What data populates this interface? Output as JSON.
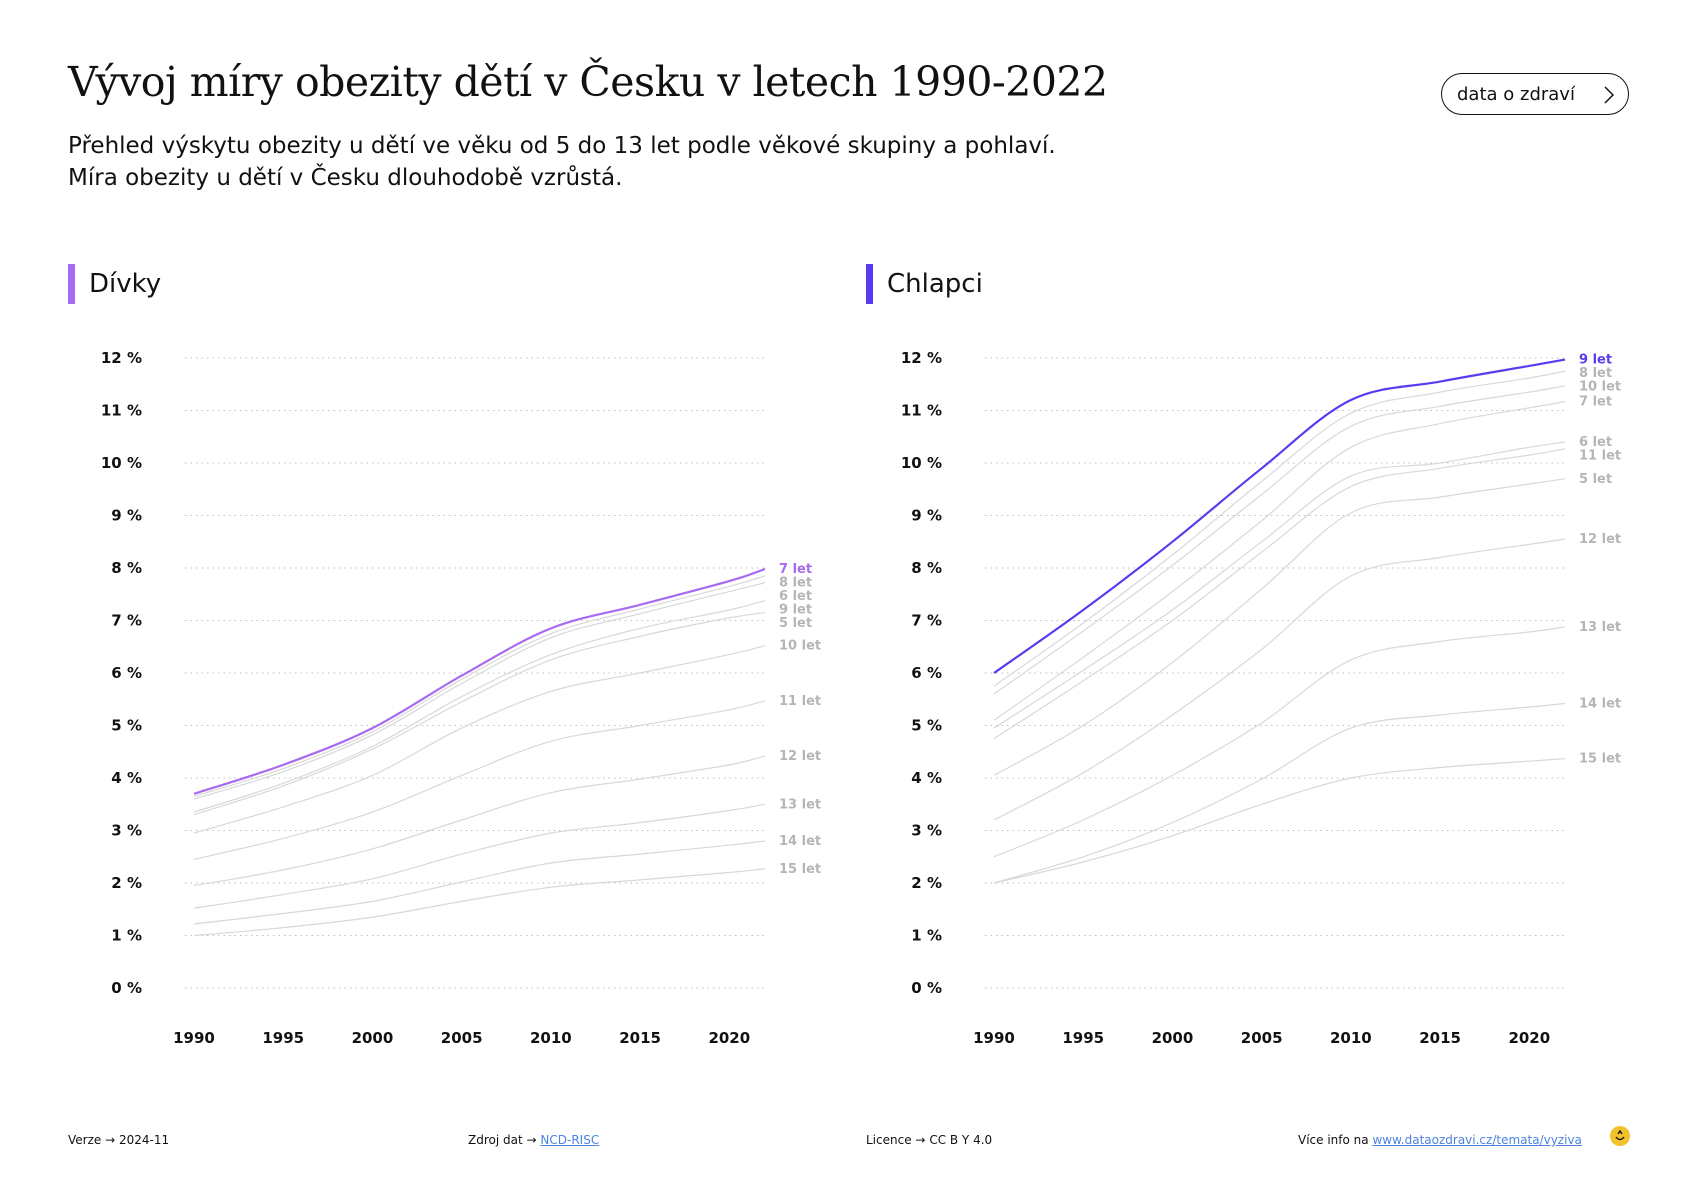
{
  "header": {
    "title": "Vývoj míry obezity dětí v Česku v letech 1990-2022",
    "subtitle_line1": "Přehled výskytu obezity u dětí ve věku od 5 do 13 let podle věkové skupiny a pohlaví.",
    "subtitle_line2": "Míra obezity u dětí v Česku dlouhodobě vzrůstá.",
    "brand_button": "data o zdraví"
  },
  "panels": {
    "left": {
      "label": "Dívky",
      "color": "#a76af0"
    },
    "right": {
      "label": "Chlapci",
      "color": "#5a3cf0"
    }
  },
  "footer": {
    "version_label": "Verze",
    "version_value": "2024-11",
    "source_label": "Zdroj dat",
    "source_link": "NCD-RISC",
    "license_label": "Licence",
    "license_value": "CC B Y 4.0",
    "info_label": "Více info na",
    "info_link": "www.dataozdravi.cz/temata/vyziva",
    "arrow": "→"
  },
  "chart_data": [
    {
      "type": "line",
      "panel": "Dívky",
      "x": [
        1990,
        1995,
        2000,
        2005,
        2010,
        2015,
        2020,
        2022
      ],
      "xticks": [
        1990,
        1995,
        2000,
        2005,
        2010,
        2015,
        2020
      ],
      "ylim": [
        0,
        12
      ],
      "yticks": [
        "0 %",
        "1 %",
        "2 %",
        "3 %",
        "4 %",
        "5 %",
        "6 %",
        "7 %",
        "8 %",
        "9 %",
        "10 %",
        "11 %",
        "12 %"
      ],
      "grid": true,
      "highlight": "7 let",
      "highlight_color": "#a76af0",
      "muted_color": "#d8d8d8",
      "label_color": "#b5b5b5",
      "series": [
        {
          "name": "7 let",
          "values": [
            3.7,
            4.25,
            4.95,
            5.95,
            6.85,
            7.3,
            7.75,
            7.98
          ]
        },
        {
          "name": "8 let",
          "values": [
            3.65,
            4.18,
            4.88,
            5.88,
            6.75,
            7.22,
            7.65,
            7.85
          ]
        },
        {
          "name": "6 let",
          "values": [
            3.6,
            4.12,
            4.82,
            5.8,
            6.67,
            7.13,
            7.55,
            7.72
          ]
        },
        {
          "name": "9 let",
          "values": [
            3.35,
            3.9,
            4.6,
            5.55,
            6.35,
            6.85,
            7.2,
            7.38
          ]
        },
        {
          "name": "5 let",
          "values": [
            3.3,
            3.85,
            4.55,
            5.45,
            6.25,
            6.7,
            7.05,
            7.15
          ]
        },
        {
          "name": "10 let",
          "values": [
            2.95,
            3.45,
            4.05,
            4.95,
            5.65,
            6.0,
            6.35,
            6.52
          ]
        },
        {
          "name": "11 let",
          "values": [
            2.45,
            2.85,
            3.35,
            4.05,
            4.7,
            5.0,
            5.3,
            5.47
          ]
        },
        {
          "name": "12 let",
          "values": [
            1.95,
            2.25,
            2.65,
            3.2,
            3.72,
            3.98,
            4.25,
            4.42
          ]
        },
        {
          "name": "13 let",
          "values": [
            1.52,
            1.78,
            2.08,
            2.55,
            2.95,
            3.15,
            3.38,
            3.5
          ]
        },
        {
          "name": "14 let",
          "values": [
            1.22,
            1.42,
            1.65,
            2.02,
            2.38,
            2.55,
            2.72,
            2.8
          ]
        },
        {
          "name": "15 let",
          "values": [
            1.0,
            1.15,
            1.35,
            1.65,
            1.92,
            2.06,
            2.2,
            2.27
          ]
        }
      ]
    },
    {
      "type": "line",
      "panel": "Chlapci",
      "x": [
        1990,
        1995,
        2000,
        2005,
        2010,
        2015,
        2020,
        2022
      ],
      "xticks": [
        1990,
        1995,
        2000,
        2005,
        2010,
        2015,
        2020
      ],
      "ylim": [
        0,
        12
      ],
      "yticks": [
        "0 %",
        "1 %",
        "2 %",
        "3 %",
        "4 %",
        "5 %",
        "6 %",
        "7 %",
        "8 %",
        "9 %",
        "10 %",
        "11 %",
        "12 %"
      ],
      "grid": true,
      "highlight": "9 let",
      "highlight_color": "#5a3cf0",
      "muted_color": "#d8d8d8",
      "label_color": "#b5b5b5",
      "series": [
        {
          "name": "9 let",
          "values": [
            6.0,
            7.2,
            8.5,
            9.9,
            11.2,
            11.55,
            11.85,
            11.97
          ]
        },
        {
          "name": "8 let",
          "values": [
            5.75,
            6.95,
            8.25,
            9.65,
            10.95,
            11.35,
            11.62,
            11.75
          ]
        },
        {
          "name": "10 let",
          "values": [
            5.6,
            6.8,
            8.05,
            9.4,
            10.7,
            11.08,
            11.35,
            11.47
          ]
        },
        {
          "name": "7 let",
          "values": [
            5.1,
            6.3,
            7.55,
            8.9,
            10.3,
            10.75,
            11.05,
            11.17
          ]
        },
        {
          "name": "6 let",
          "values": [
            4.95,
            6.05,
            7.2,
            8.5,
            9.75,
            10.0,
            10.3,
            10.4
          ]
        },
        {
          "name": "11 let",
          "values": [
            4.75,
            5.85,
            7.0,
            8.3,
            9.55,
            9.9,
            10.15,
            10.27
          ]
        },
        {
          "name": "5 let",
          "values": [
            4.05,
            5.0,
            6.2,
            7.6,
            9.05,
            9.35,
            9.6,
            9.7
          ]
        },
        {
          "name": "12 let",
          "values": [
            3.2,
            4.1,
            5.2,
            6.45,
            7.85,
            8.2,
            8.45,
            8.55
          ]
        },
        {
          "name": "13 let",
          "values": [
            2.5,
            3.2,
            4.05,
            5.05,
            6.25,
            6.6,
            6.78,
            6.88
          ]
        },
        {
          "name": "14 let",
          "values": [
            2.0,
            2.5,
            3.15,
            3.98,
            4.95,
            5.2,
            5.35,
            5.42
          ]
        },
        {
          "name": "15 let",
          "values": [
            2.0,
            2.4,
            2.9,
            3.5,
            4.0,
            4.2,
            4.32,
            4.37
          ]
        }
      ]
    }
  ]
}
